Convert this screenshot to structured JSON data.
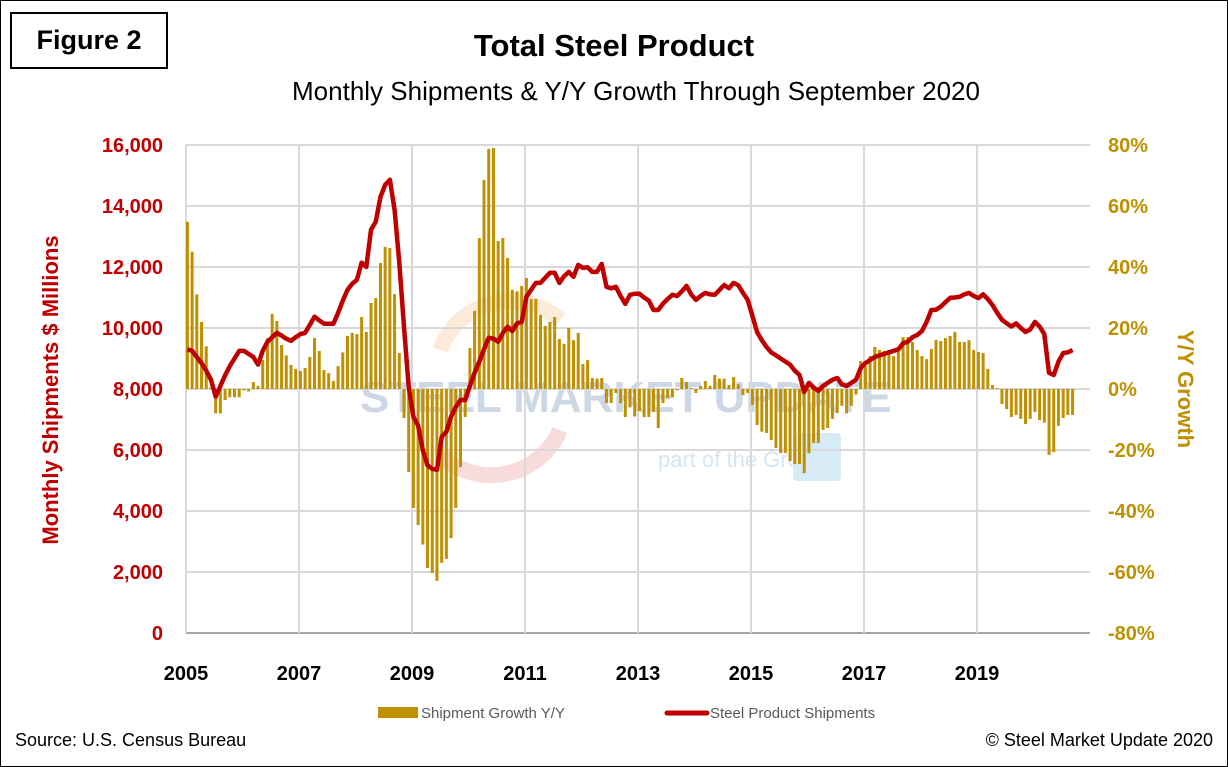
{
  "figure_label": "Figure 2",
  "footer": {
    "source": "Source: U.S. Census Bureau",
    "copyright": "© Steel Market Update 2020"
  },
  "watermark": {
    "line1": "STEEL MARKET UPDATE",
    "line2_prefix": "part of the",
    "line2_logo": "CRU",
    "line2_suffix": "Group"
  },
  "chart_data": {
    "type": "bar+line",
    "title": "Total Steel Product",
    "subtitle": "Monthly Shipments & Y/Y Growth Through September 2020",
    "ylabel": "Monthly Shipments $ Millions",
    "y2label": "Y/Y Growth",
    "xlim": [
      "2005-01",
      "2020-12"
    ],
    "ylim": [
      0,
      16000
    ],
    "y2lim": [
      -80,
      80
    ],
    "grid": true,
    "legend_position": "bottom",
    "x_ticks": [
      "2005",
      "2007",
      "2009",
      "2011",
      "2013",
      "2015",
      "2017",
      "2019"
    ],
    "y_ticks": [
      "0",
      "2,000",
      "4,000",
      "6,000",
      "8,000",
      "10,000",
      "12,000",
      "14,000",
      "16,000"
    ],
    "y2_ticks": [
      "-80%",
      "-60%",
      "-40%",
      "-20%",
      "0%",
      "20%",
      "40%",
      "60%",
      "80%"
    ],
    "colors": {
      "bars": "#BF9000",
      "line": "#C00000",
      "left_axis": "#C00000",
      "right_axis": "#BF9000",
      "grid": "#D9D9D9"
    },
    "x": [
      "2005-01",
      "2005-02",
      "2005-03",
      "2005-04",
      "2005-05",
      "2005-06",
      "2005-07",
      "2005-08",
      "2005-09",
      "2005-10",
      "2005-11",
      "2005-12",
      "2006-01",
      "2006-02",
      "2006-03",
      "2006-04",
      "2006-05",
      "2006-06",
      "2006-07",
      "2006-08",
      "2006-09",
      "2006-10",
      "2006-11",
      "2006-12",
      "2007-01",
      "2007-02",
      "2007-03",
      "2007-04",
      "2007-05",
      "2007-06",
      "2007-07",
      "2007-08",
      "2007-09",
      "2007-10",
      "2007-11",
      "2007-12",
      "2008-01",
      "2008-02",
      "2008-03",
      "2008-04",
      "2008-05",
      "2008-06",
      "2008-07",
      "2008-08",
      "2008-09",
      "2008-10",
      "2008-11",
      "2008-12",
      "2009-01",
      "2009-02",
      "2009-03",
      "2009-04",
      "2009-05",
      "2009-06",
      "2009-07",
      "2009-08",
      "2009-09",
      "2009-10",
      "2009-11",
      "2009-12",
      "2010-01",
      "2010-02",
      "2010-03",
      "2010-04",
      "2010-05",
      "2010-06",
      "2010-07",
      "2010-08",
      "2010-09",
      "2010-10",
      "2010-11",
      "2010-12",
      "2011-01",
      "2011-02",
      "2011-03",
      "2011-04",
      "2011-05",
      "2011-06",
      "2011-07",
      "2011-08",
      "2011-09",
      "2011-10",
      "2011-11",
      "2011-12",
      "2012-01",
      "2012-02",
      "2012-03",
      "2012-04",
      "2012-05",
      "2012-06",
      "2012-07",
      "2012-08",
      "2012-09",
      "2012-10",
      "2012-11",
      "2012-12",
      "2013-01",
      "2013-02",
      "2013-03",
      "2013-04",
      "2013-05",
      "2013-06",
      "2013-07",
      "2013-08",
      "2013-09",
      "2013-10",
      "2013-11",
      "2013-12",
      "2014-01",
      "2014-02",
      "2014-03",
      "2014-04",
      "2014-05",
      "2014-06",
      "2014-07",
      "2014-08",
      "2014-09",
      "2014-10",
      "2014-11",
      "2014-12",
      "2015-01",
      "2015-02",
      "2015-03",
      "2015-04",
      "2015-05",
      "2015-06",
      "2015-07",
      "2015-08",
      "2015-09",
      "2015-10",
      "2015-11",
      "2015-12",
      "2016-01",
      "2016-02",
      "2016-03",
      "2016-04",
      "2016-05",
      "2016-06",
      "2016-07",
      "2016-08",
      "2016-09",
      "2016-10",
      "2016-11",
      "2016-12",
      "2017-01",
      "2017-02",
      "2017-03",
      "2017-04",
      "2017-05",
      "2017-06",
      "2017-07",
      "2017-08",
      "2017-09",
      "2017-10",
      "2017-11",
      "2017-12",
      "2018-01",
      "2018-02",
      "2018-03",
      "2018-04",
      "2018-05",
      "2018-06",
      "2018-07",
      "2018-08",
      "2018-09",
      "2018-10",
      "2018-11",
      "2018-12",
      "2019-01",
      "2019-02",
      "2019-03",
      "2019-04",
      "2019-05",
      "2019-06",
      "2019-07",
      "2019-08",
      "2019-09",
      "2019-10",
      "2019-11",
      "2019-12",
      "2020-01",
      "2020-02",
      "2020-03",
      "2020-04",
      "2020-05",
      "2020-06",
      "2020-07",
      "2020-08",
      "2020-09"
    ],
    "series": [
      {
        "name": "Shipment Growth Y/Y",
        "type": "bar",
        "axis": "right",
        "unit": "%",
        "values": [
          54.8,
          45,
          31,
          22,
          14,
          0.5,
          -8,
          -8,
          -3.6,
          -2.7,
          -2.7,
          -2.7,
          -0.5,
          -0.8,
          2.3,
          1,
          9.5,
          16.7,
          24.6,
          22.3,
          14.4,
          11,
          7.9,
          6.6,
          5.9,
          6.9,
          10.5,
          16.7,
          12.5,
          6.2,
          5.2,
          2.6,
          7.5,
          12,
          17.4,
          18.4,
          18,
          23.6,
          18.7,
          28.2,
          29.8,
          41.3,
          46.6,
          46.2,
          31.1,
          11.8,
          -9.5,
          -27.2,
          -39,
          -44.6,
          -51,
          -58.7,
          -60.3,
          -62.9,
          -57,
          -55.7,
          -48.9,
          -39,
          -25.6,
          -9.2,
          13.4,
          25.6,
          49.5,
          68.5,
          78.7,
          79,
          48.5,
          49.5,
          43,
          32.5,
          32,
          33.8,
          36.4,
          29.5,
          29.5,
          24.3,
          20.7,
          22,
          23.6,
          16.4,
          14.8,
          20,
          16,
          18.4,
          8.2,
          9.5,
          3.6,
          3.4,
          3.6,
          -4.6,
          -4.6,
          -1.3,
          -4.6,
          -9.2,
          -6,
          -9,
          -7.2,
          -9.2,
          -9.2,
          -7.5,
          -12.8,
          -4.6,
          -3,
          -2.8,
          -0.4,
          3.6,
          2.3,
          0.3,
          -1.3,
          1,
          2.6,
          1,
          4.6,
          3.4,
          3.4,
          1.3,
          3.9,
          1.6,
          -2,
          -1.3,
          -5.2,
          -11.8,
          -14,
          -14.4,
          -16.7,
          -19.3,
          -21,
          -21,
          -23.6,
          -24.6,
          -24.6,
          -27.6,
          -21,
          -17.7,
          -17.7,
          -13.4,
          -12.8,
          -9.8,
          -7.9,
          -5.5,
          -8,
          -5.5,
          -1.8,
          9.2,
          7.5,
          10.8,
          13.8,
          12.8,
          12.5,
          12.8,
          10.8,
          12.8,
          17,
          17,
          15.4,
          12.8,
          10.8,
          9.8,
          13.1,
          16.1,
          15.7,
          16.7,
          17.4,
          18.7,
          15.4,
          15.4,
          16,
          12.8,
          12.1,
          11.8,
          6.6,
          1.3,
          0.3,
          -4.9,
          -6.6,
          -9.2,
          -8.5,
          -9.8,
          -11.5,
          -9.8,
          -7.5,
          -10.2,
          -11,
          -21.6,
          -20.7,
          -12.1,
          -9.5,
          -8.5,
          -8.5
        ]
      },
      {
        "name": "Steel Product Shipments",
        "type": "line",
        "axis": "left",
        "unit": "$ Millions",
        "values": [
          9300,
          9250,
          9050,
          8850,
          8600,
          8300,
          7750,
          8100,
          8450,
          8750,
          9000,
          9250,
          9250,
          9150,
          9050,
          8800,
          9250,
          9550,
          9700,
          9840,
          9750,
          9650,
          9580,
          9700,
          9800,
          9840,
          10100,
          10370,
          10250,
          10140,
          10140,
          10140,
          10500,
          10900,
          11250,
          11450,
          11580,
          12140,
          12000,
          13220,
          13480,
          14300,
          14700,
          14860,
          13870,
          12140,
          10040,
          8070,
          7090,
          6800,
          6000,
          5500,
          5380,
          5350,
          6430,
          6600,
          7100,
          7410,
          7640,
          7640,
          8100,
          8530,
          8900,
          9300,
          9680,
          9650,
          9550,
          9840,
          10040,
          9900,
          10150,
          10200,
          11020,
          11250,
          11480,
          11480,
          11650,
          11810,
          11810,
          11480,
          11700,
          11840,
          11680,
          12070,
          11970,
          11990,
          11840,
          11840,
          12100,
          11350,
          11300,
          11350,
          11050,
          10790,
          11090,
          11120,
          11120,
          11000,
          10900,
          10590,
          10590,
          10800,
          10950,
          11090,
          11050,
          11200,
          11380,
          11100,
          10920,
          11050,
          11150,
          11100,
          11090,
          11250,
          11410,
          11300,
          11480,
          11400,
          11150,
          10920,
          10400,
          9870,
          9600,
          9380,
          9200,
          9100,
          9000,
          8900,
          8800,
          8600,
          8460,
          7900,
          8200,
          8050,
          7940,
          8100,
          8200,
          8300,
          8360,
          8150,
          8100,
          8200,
          8300,
          8690,
          8850,
          8950,
          9050,
          9100,
          9150,
          9200,
          9250,
          9300,
          9500,
          9550,
          9700,
          9770,
          9900,
          10200,
          10590,
          10600,
          10700,
          10850,
          10990,
          11000,
          11020,
          11100,
          11150,
          11050,
          10980,
          11100,
          10950,
          10750,
          10500,
          10270,
          10150,
          10050,
          10150,
          10000,
          9870,
          9950,
          10200,
          10050,
          9800,
          8530,
          8460,
          8900,
          9180,
          9200,
          9280
        ]
      }
    ]
  }
}
